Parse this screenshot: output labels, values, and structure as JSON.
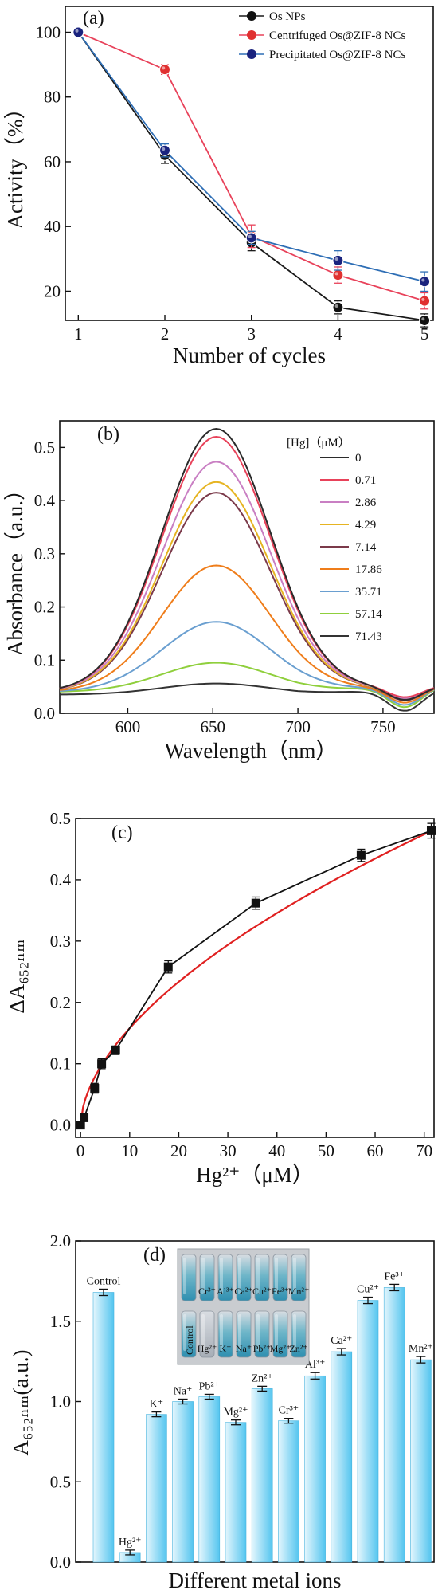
{
  "figure": {
    "title": ""
  },
  "chart_data": [
    {
      "panel_label": "(a)",
      "type": "line",
      "xlabel": "Number of cycles",
      "ylabel": "Activity（%）",
      "x": [
        1,
        2,
        3,
        4,
        5
      ],
      "xlim": [
        0.85,
        5.1
      ],
      "ylim": [
        11,
        108
      ],
      "xticks": [
        1,
        2,
        3,
        4,
        5
      ],
      "yticks": [
        20,
        40,
        60,
        80,
        100
      ],
      "legend_position": "top-right",
      "series": [
        {
          "name": "Os NPs",
          "color": "#1a1a1a",
          "marker": "#111111",
          "y": [
            100,
            62,
            35,
            15,
            11
          ],
          "err": [
            0.5,
            2.5,
            2.5,
            2.0,
            2.0
          ]
        },
        {
          "name": "Centrifuged Os@ZIF-8 NCs",
          "color": "#e8425a",
          "marker": "#e03030",
          "y": [
            100,
            88.5,
            37,
            25,
            17
          ],
          "err": [
            0.5,
            1.5,
            3.5,
            2.5,
            2.5
          ]
        },
        {
          "name": "Precipitated Os@ZIF-8 NCs",
          "color": "#2e6eb5",
          "marker": "#1a237e",
          "y": [
            100,
            63.5,
            36.5,
            29.5,
            23
          ],
          "err": [
            0.5,
            2.0,
            2.0,
            3.0,
            3.0
          ]
        }
      ]
    },
    {
      "panel_label": "(b)",
      "type": "line",
      "xlabel": "Wavelength（nm）",
      "ylabel": "Absorbance（a.u.）",
      "xlim": [
        560,
        780
      ],
      "ylim": [
        0,
        0.55
      ],
      "xticks": [
        600,
        650,
        700,
        750
      ],
      "yticks": [
        0.0,
        0.1,
        0.2,
        0.3,
        0.4,
        0.5
      ],
      "legend_title": "[Hg]（μM）",
      "legend_position": "top-right",
      "spectra": [
        {
          "name": "0",
          "color": "#2b2b2b",
          "peak": 0.535,
          "base": 0.04,
          "dip": 0.025
        },
        {
          "name": "0.71",
          "color": "#e8425a",
          "peak": 0.52,
          "base": 0.04,
          "dip": 0.02
        },
        {
          "name": "2.86",
          "color": "#c97fc3",
          "peak": 0.473,
          "base": 0.04,
          "dip": 0.022
        },
        {
          "name": "4.29",
          "color": "#e6b422",
          "peak": 0.435,
          "base": 0.04,
          "dip": 0.024
        },
        {
          "name": "7.14",
          "color": "#7b3a4a",
          "peak": 0.415,
          "base": 0.04,
          "dip": 0.026
        },
        {
          "name": "17.86",
          "color": "#ef7d1a",
          "peak": 0.278,
          "base": 0.04,
          "dip": 0.03
        },
        {
          "name": "35.71",
          "color": "#6a9fd0",
          "peak": 0.172,
          "base": 0.04,
          "dip": 0.034
        },
        {
          "name": "57.14",
          "color": "#8fcf3c",
          "peak": 0.095,
          "base": 0.04,
          "dip": 0.038
        },
        {
          "name": "71.43",
          "color": "#333333",
          "peak": 0.056,
          "base": 0.035,
          "dip": 0.04
        }
      ]
    },
    {
      "panel_label": "(c)",
      "type": "scatter",
      "xlabel": "Hg²⁺（μM）",
      "ylabel": "ΔA₆₅₂ₙₘ",
      "xlim": [
        -1,
        72
      ],
      "ylim": [
        -0.02,
        0.5
      ],
      "xticks": [
        0,
        10,
        20,
        30,
        40,
        50,
        60,
        70
      ],
      "yticks": [
        0.0,
        0.1,
        0.2,
        0.3,
        0.4,
        0.5
      ],
      "points": {
        "name": "data",
        "color": "#111111",
        "x": [
          0,
          0.71,
          2.86,
          4.29,
          7.14,
          17.86,
          35.71,
          57.14,
          71.43
        ],
        "y": [
          0.0,
          0.012,
          0.06,
          0.1,
          0.122,
          0.258,
          0.362,
          0.44,
          0.48
        ],
        "err": [
          0.006,
          0.006,
          0.008,
          0.008,
          0.007,
          0.01,
          0.01,
          0.01,
          0.012
        ]
      },
      "fit": {
        "name": "fit",
        "color": "#e02020",
        "a": 0.043,
        "b": 0.565
      }
    },
    {
      "panel_label": "(d)",
      "type": "bar",
      "xlabel": "Different metal ions",
      "ylabel": "A₆₅₂ₙₘ(a.u.)",
      "ylim": [
        0,
        2.0
      ],
      "yticks": [
        0.0,
        0.5,
        1.0,
        1.5,
        2.0
      ],
      "categories": [
        "Control",
        "Hg²⁺",
        "K⁺",
        "Na⁺",
        "Pb²⁺",
        "Mg²⁺",
        "Zn²⁺",
        "Cr³⁺",
        "Al³⁺",
        "Ca²⁺",
        "Cu²⁺",
        "Fe³⁺",
        "Mn²⁺"
      ],
      "values": [
        1.68,
        0.06,
        0.92,
        1.0,
        1.03,
        0.87,
        1.08,
        0.88,
        1.16,
        1.31,
        1.63,
        1.71,
        1.26
      ],
      "err": [
        0.02,
        0.015,
        0.015,
        0.015,
        0.015,
        0.015,
        0.015,
        0.015,
        0.02,
        0.02,
        0.02,
        0.02,
        0.02
      ],
      "bar_color_light": "#e4f6fd",
      "bar_color_dark": "#54c5ef",
      "inset": {
        "row_top": [
          "Cr³⁺",
          "Al³⁺",
          "Ca²⁺",
          "Cu²⁺",
          "Fe³⁺",
          "Mn²⁺"
        ],
        "row_bottom_first": "Control",
        "row_bottom": [
          "Hg²⁺",
          "K⁺",
          "Na⁺",
          "Pb²⁺",
          "Mg²⁺",
          "Zn²⁺"
        ]
      }
    }
  ]
}
